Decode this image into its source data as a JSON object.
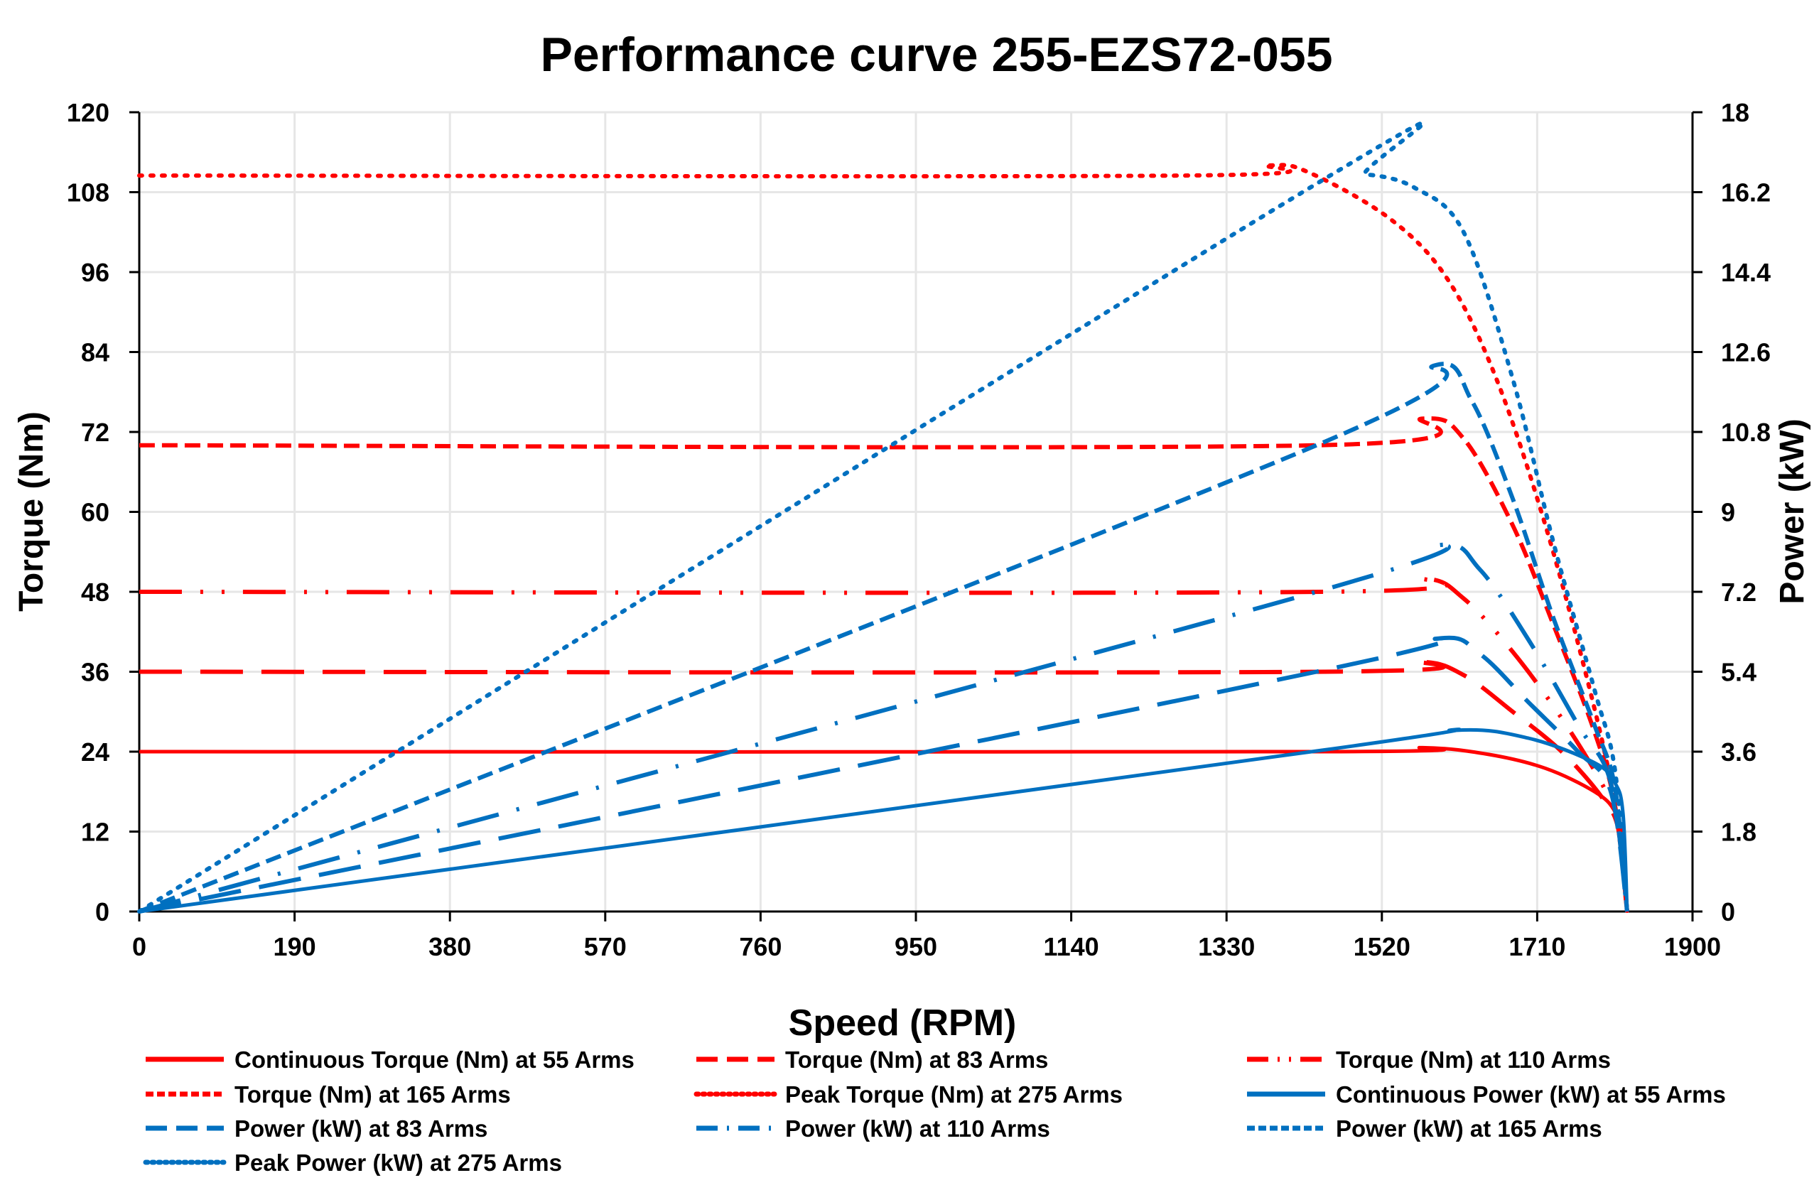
{
  "chart_data": {
    "type": "line",
    "title": "Performance curve 255-EZS72-055",
    "xlabel": "Speed (RPM)",
    "ylabel": "Torque (Nm)",
    "y2label": "Power (kW)",
    "xlim": [
      0,
      1900
    ],
    "ylim": [
      0,
      120
    ],
    "y2lim": [
      0,
      18
    ],
    "xticks": [
      "0",
      "190",
      "380",
      "570",
      "760",
      "950",
      "1140",
      "1330",
      "1520",
      "1710",
      "1900"
    ],
    "yticks": [
      "0",
      "12",
      "24",
      "36",
      "48",
      "60",
      "72",
      "84",
      "96",
      "108",
      "120"
    ],
    "y2ticks": [
      "0",
      "1.8",
      "3.6",
      "5.4",
      "7.2",
      "9",
      "10.8",
      "12.6",
      "14.4",
      "16.2",
      "18"
    ],
    "grid": true,
    "legend_position": "bottom",
    "colors": {
      "torque": "#ff0000",
      "power": "#0070c0"
    },
    "series": [
      {
        "name": "Continuous Torque (Nm) at 55 Arms",
        "axis": "left",
        "color": "#ff0000",
        "style": "solid",
        "x": [
          0,
          1450,
          1570,
          1650,
          1720,
          1780,
          1805,
          1815,
          1820
        ],
        "y": [
          24,
          24,
          24.6,
          23.6,
          21.5,
          18,
          15,
          10,
          0
        ]
      },
      {
        "name": "Torque (Nm) at 83 Arms",
        "axis": "left",
        "color": "#ff0000",
        "style": "longdash",
        "x": [
          0,
          1450,
          1565,
          1620,
          1680,
          1740,
          1790,
          1810,
          1820
        ],
        "y": [
          36,
          36,
          37.5,
          35.5,
          30,
          24,
          17,
          12,
          0
        ]
      },
      {
        "name": "Torque (Nm) at 110 Arms",
        "axis": "left",
        "color": "#ff0000",
        "style": "dashdotdot",
        "x": [
          0,
          1450,
          1570,
          1620,
          1680,
          1740,
          1790,
          1810,
          1820
        ],
        "y": [
          48,
          48,
          50,
          47,
          39,
          29,
          19,
          13,
          0
        ]
      },
      {
        "name": "Torque (Nm) at 165 Arms",
        "axis": "left",
        "color": "#ff0000",
        "style": "dash",
        "x": [
          0,
          1440,
          1570,
          1620,
          1680,
          1730,
          1780,
          1805,
          1820
        ],
        "y": [
          70,
          70,
          74,
          71,
          58,
          43,
          27,
          16,
          0
        ]
      },
      {
        "name": "Peak Torque (Nm) at 275 Arms",
        "axis": "left",
        "color": "#ff0000",
        "style": "dot",
        "x": [
          0,
          1280,
          1380,
          1430,
          1530,
          1600,
          1660,
          1720,
          1775,
          1805,
          1820
        ],
        "y": [
          110.5,
          110.5,
          112,
          111,
          104,
          95,
          80,
          58,
          33,
          16,
          0
        ]
      },
      {
        "name": "Continuous Power (kW) at 55 Arms",
        "axis": "right",
        "color": "#0070c0",
        "style": "solid",
        "x": [
          0,
          1450,
          1610,
          1700,
          1780,
          1805,
          1815,
          1820
        ],
        "y": [
          0,
          3.64,
          4.08,
          3.9,
          3.35,
          2.9,
          2.2,
          0
        ]
      },
      {
        "name": "Power (kW) at 83 Arms",
        "axis": "right",
        "color": "#0070c0",
        "style": "longdash",
        "x": [
          0,
          1440,
          1590,
          1640,
          1700,
          1760,
          1800,
          1820
        ],
        "y": [
          0,
          5.4,
          6.15,
          5.8,
          4.7,
          3.6,
          2.7,
          0
        ]
      },
      {
        "name": "Power (kW) at 110 Arms",
        "axis": "right",
        "color": "#0070c0",
        "style": "dashdot",
        "x": [
          0,
          1440,
          1590,
          1640,
          1700,
          1760,
          1800,
          1820
        ],
        "y": [
          0,
          7.2,
          8.25,
          7.7,
          6.1,
          4.2,
          2.9,
          0
        ]
      },
      {
        "name": "Power (kW) at 165 Arms",
        "axis": "right",
        "color": "#0070c0",
        "style": "dash",
        "x": [
          0,
          1440,
          1585,
          1630,
          1680,
          1730,
          1780,
          1805,
          1820
        ],
        "y": [
          0,
          10.5,
          12.3,
          11.5,
          9.3,
          6.6,
          4.2,
          2.8,
          0
        ]
      },
      {
        "name": "Peak Power (kW) at 275 Arms",
        "axis": "right",
        "color": "#0070c0",
        "style": "dot",
        "x": [
          0,
          1450,
          1500,
          1560,
          1620,
          1680,
          1730,
          1780,
          1805,
          1820
        ],
        "y": [
          0,
          16.5,
          16.6,
          16.3,
          15.3,
          12,
          8.3,
          5,
          3.2,
          0
        ]
      }
    ]
  }
}
